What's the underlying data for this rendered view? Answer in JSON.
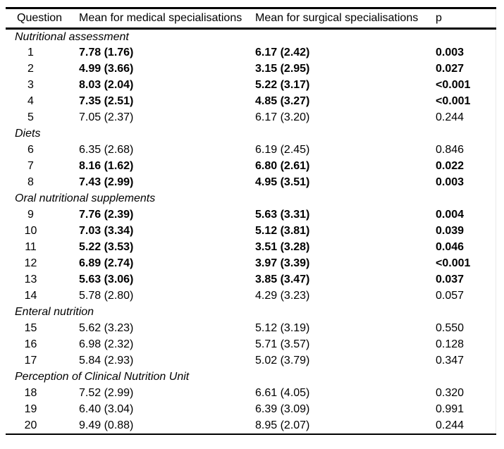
{
  "table": {
    "columns": [
      "Question",
      "Mean for medical specialisations",
      "Mean for surgical specialisations",
      "p"
    ],
    "sections": [
      {
        "label": "Nutritional assessment",
        "rows": [
          {
            "q": "1",
            "medical": "7.78 (1.76)",
            "surgical": "6.17 (2.42)",
            "p": "0.003",
            "bold": true
          },
          {
            "q": "2",
            "medical": "4.99 (3.66)",
            "surgical": "3.15 (2.95)",
            "p": "0.027",
            "bold": true
          },
          {
            "q": "3",
            "medical": "8.03 (2.04)",
            "surgical": "5.22 (3.17)",
            "p": "<0.001",
            "bold": true
          },
          {
            "q": "4",
            "medical": "7.35 (2.51)",
            "surgical": "4.85 (3.27)",
            "p": "<0.001",
            "bold": true
          },
          {
            "q": "5",
            "medical": "7.05 (2.37)",
            "surgical": "6.17 (3.20)",
            "p": "0.244",
            "bold": false
          }
        ]
      },
      {
        "label": "Diets",
        "rows": [
          {
            "q": "6",
            "medical": "6.35 (2.68)",
            "surgical": "6.19 (2.45)",
            "p": "0.846",
            "bold": false
          },
          {
            "q": "7",
            "medical": "8.16 (1.62)",
            "surgical": "6.80 (2.61)",
            "p": "0.022",
            "bold": true
          },
          {
            "q": "8",
            "medical": "7.43 (2.99)",
            "surgical": "4.95 (3.51)",
            "p": "0.003",
            "bold": true
          }
        ]
      },
      {
        "label": "Oral nutritional supplements",
        "rows": [
          {
            "q": "9",
            "medical": "7.76 (2.39)",
            "surgical": "5.63 (3.31)",
            "p": "0.004",
            "bold": true
          },
          {
            "q": "10",
            "medical": "7.03 (3.34)",
            "surgical": "5.12 (3.81)",
            "p": "0.039",
            "bold": true
          },
          {
            "q": "11",
            "medical": "5.22 (3.53)",
            "surgical": "3.51 (3.28)",
            "p": "0.046",
            "bold": true
          },
          {
            "q": "12",
            "medical": "6.89 (2.74)",
            "surgical": "3.97 (3.39)",
            "p": "<0.001",
            "bold": true
          },
          {
            "q": "13",
            "medical": "5.63 (3.06)",
            "surgical": "3.85 (3.47)",
            "p": "0.037",
            "bold": true
          },
          {
            "q": "14",
            "medical": "5.78 (2.80)",
            "surgical": "4.29 (3.23)",
            "p": "0.057",
            "bold": false
          }
        ]
      },
      {
        "label": "Enteral nutrition",
        "rows": [
          {
            "q": "15",
            "medical": "5.62 (3.23)",
            "surgical": "5.12 (3.19)",
            "p": "0.550",
            "bold": false
          },
          {
            "q": "16",
            "medical": "6.98 (2.32)",
            "surgical": "5.71 (3.57)",
            "p": "0.128",
            "bold": false
          },
          {
            "q": "17",
            "medical": "5.84 (2.93)",
            "surgical": "5.02 (3.79)",
            "p": "0.347",
            "bold": false
          }
        ]
      },
      {
        "label": "Perception of Clinical Nutrition Unit",
        "rows": [
          {
            "q": "18",
            "medical": "7.52 (2.99)",
            "surgical": "6.61 (4.05)",
            "p": "0.320",
            "bold": false
          },
          {
            "q": "19",
            "medical": "6.40 (3.04)",
            "surgical": "6.39 (3.09)",
            "p": "0.991",
            "bold": false
          },
          {
            "q": "20",
            "medical": "9.49 (0.88)",
            "surgical": "8.95 (2.07)",
            "p": "0.244",
            "bold": false
          }
        ]
      }
    ]
  },
  "colors": {
    "background": "#ffffff",
    "text": "#000000",
    "rule": "#000000"
  }
}
